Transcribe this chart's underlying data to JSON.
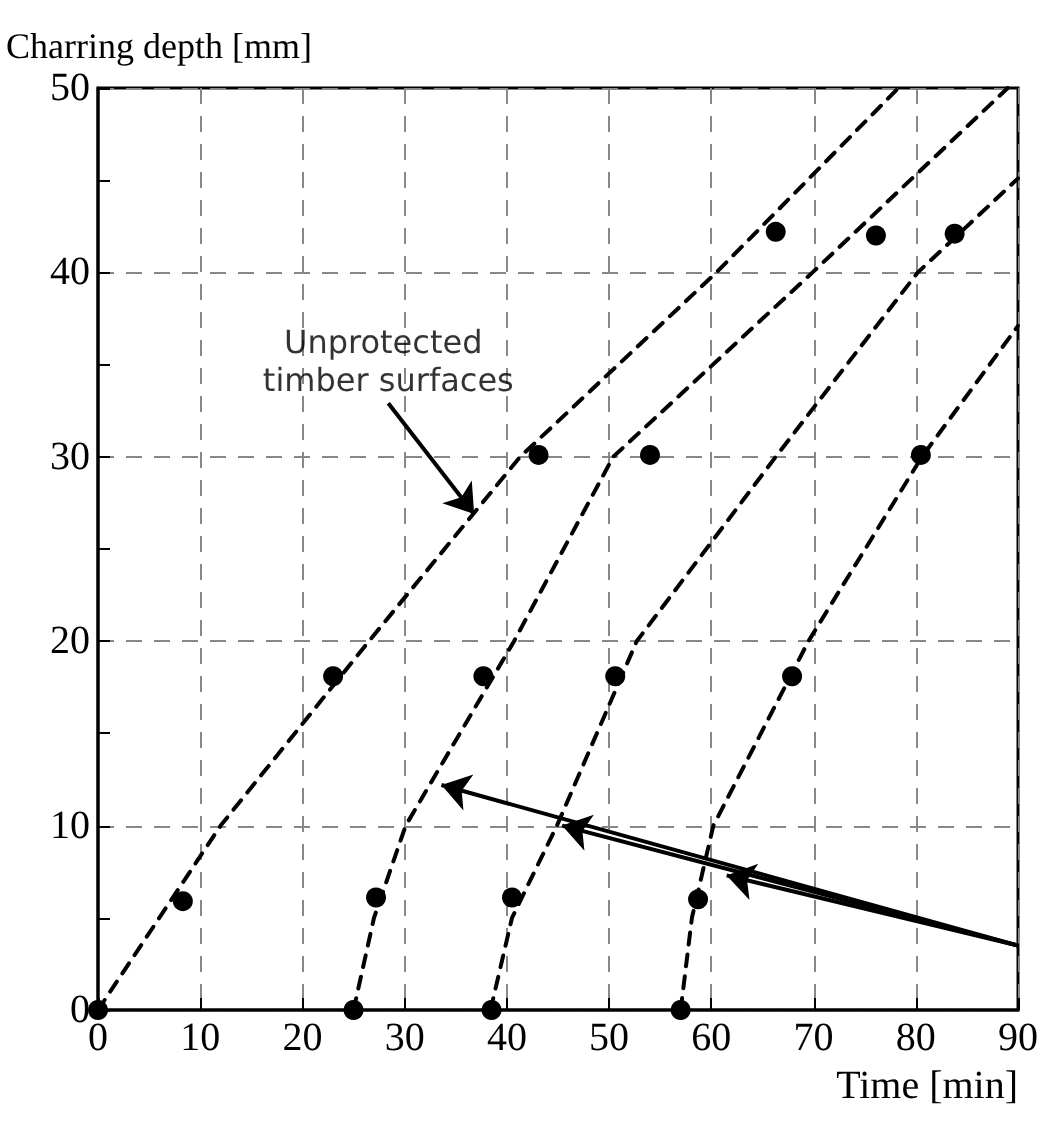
{
  "chart_data": {
    "type": "line",
    "xlabel": "Time [min]",
    "ylabel": "Charring depth [mm]",
    "xlim": [
      0,
      90
    ],
    "xticks": [
      0,
      10,
      20,
      30,
      40,
      50,
      60,
      70,
      80,
      90
    ],
    "ylim": [
      0,
      50
    ],
    "yticks": [
      0,
      10,
      20,
      30,
      40,
      50
    ],
    "grid": true,
    "line_style": "dashed",
    "marker": "none",
    "series": [
      {
        "color": "#000000",
        "x": [
          0,
          12,
          26.5,
          41.3,
          60.5,
          78.3
        ],
        "values": [
          0,
          10,
          20,
          30,
          40,
          50
        ]
      },
      {
        "color": "#000000",
        "x": [
          25,
          27,
          30.1,
          40.7,
          50.4,
          69.9,
          89
        ],
        "values": [
          0,
          5,
          10,
          20,
          30,
          40,
          50
        ]
      },
      {
        "color": "#000000",
        "x": [
          38.4,
          40.5,
          44.9,
          52.7,
          66.3,
          80.2,
          90
        ],
        "values": [
          0,
          5,
          10,
          20,
          30,
          40,
          45.1
        ]
      },
      {
        "color": "#000000",
        "x": [
          57,
          58.1,
          60.2,
          69.5,
          80.6,
          90
        ],
        "values": [
          0,
          5,
          10,
          20,
          30,
          37.1
        ]
      },
      {
        "type": "scatter",
        "marker": "circle",
        "color": "#000000",
        "x": [
          0,
          8.3,
          23,
          43.1,
          66.3
        ],
        "values": [
          0,
          5.9,
          18.1,
          30.1,
          42.2
        ]
      },
      {
        "type": "scatter",
        "marker": "circle",
        "color": "#000000",
        "x": [
          25,
          27.2,
          37.7,
          54,
          76.1
        ],
        "values": [
          0,
          6.1,
          18.1,
          30.1,
          42
        ]
      },
      {
        "type": "scatter",
        "marker": "circle",
        "color": "#000000",
        "x": [
          38.5,
          40.5,
          50.6,
          83.8
        ],
        "values": [
          0,
          6.1,
          18.1,
          42.1
        ]
      },
      {
        "type": "scatter",
        "marker": "circle",
        "color": "#000000",
        "x": [
          57,
          58.7,
          67.9,
          80.5
        ],
        "values": [
          0,
          6,
          18.1,
          30.1
        ]
      }
    ],
    "annotations": [
      {
        "text": "Unprotected timber surfaces",
        "x": 36.8,
        "y": 26.9
      }
    ]
  }
}
